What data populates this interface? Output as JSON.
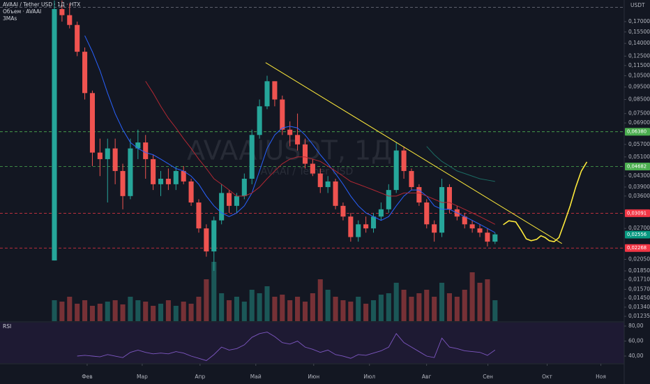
{
  "header": {
    "symbol_line": "AVAAI / Tether USD · 1Д · HTX",
    "volume_line": "Объем · AVAAI",
    "ma_line": "3MAs",
    "currency": "USDT"
  },
  "watermark": {
    "symbol": "AVAAIUSDT, 1Д",
    "name": "AVAAI / Tether USD"
  },
  "chart_data": [
    {
      "type": "candlestick",
      "log_scale": true,
      "grid": false,
      "up_color": "#26a69a",
      "down_color": "#ef5350",
      "x": [
        0,
        1,
        2,
        3,
        4,
        5,
        6,
        7,
        8,
        9,
        10,
        11,
        12,
        13,
        14,
        15,
        16,
        17,
        18,
        19,
        20,
        21,
        22,
        23,
        24,
        25,
        26,
        27,
        28,
        29,
        30,
        31,
        32,
        33,
        34,
        35,
        36,
        37,
        38,
        39,
        40,
        41,
        42,
        43,
        44,
        45,
        46,
        47,
        48,
        49,
        50,
        51,
        52,
        53,
        54,
        55,
        56,
        57,
        58
      ],
      "open": [
        0.0203,
        0.19,
        0.18,
        0.165,
        0.13,
        0.09,
        0.053,
        0.05,
        0.055,
        0.045,
        0.036,
        0.055,
        0.058,
        0.05,
        0.04,
        0.042,
        0.04,
        0.045,
        0.041,
        0.034,
        0.027,
        0.022,
        0.029,
        0.037,
        0.033,
        0.036,
        0.042,
        0.062,
        0.08,
        0.1,
        0.085,
        0.065,
        0.062,
        0.057,
        0.048,
        0.044,
        0.039,
        0.041,
        0.033,
        0.03,
        0.025,
        0.028,
        0.027,
        0.03,
        0.032,
        0.038,
        0.054,
        0.045,
        0.039,
        0.034,
        0.028,
        0.026,
        0.039,
        0.032,
        0.03,
        0.028,
        0.027,
        0.026,
        0.024
      ],
      "high": [
        0.205,
        0.205,
        0.2,
        0.17,
        0.135,
        0.092,
        0.06,
        0.06,
        0.06,
        0.048,
        0.06,
        0.065,
        0.062,
        0.052,
        0.045,
        0.046,
        0.047,
        0.047,
        0.042,
        0.035,
        0.028,
        0.03,
        0.04,
        0.038,
        0.037,
        0.044,
        0.065,
        0.085,
        0.105,
        0.1,
        0.088,
        0.07,
        0.075,
        0.06,
        0.05,
        0.046,
        0.043,
        0.042,
        0.034,
        0.031,
        0.029,
        0.03,
        0.031,
        0.034,
        0.04,
        0.058,
        0.056,
        0.046,
        0.04,
        0.035,
        0.029,
        0.042,
        0.04,
        0.033,
        0.031,
        0.029,
        0.028,
        0.027,
        0.026
      ],
      "low": [
        0.0203,
        0.17,
        0.16,
        0.125,
        0.085,
        0.047,
        0.043,
        0.034,
        0.04,
        0.032,
        0.035,
        0.05,
        0.042,
        0.038,
        0.036,
        0.038,
        0.038,
        0.04,
        0.033,
        0.026,
        0.021,
        0.0185,
        0.028,
        0.031,
        0.031,
        0.035,
        0.04,
        0.06,
        0.078,
        0.08,
        0.062,
        0.056,
        0.054,
        0.046,
        0.043,
        0.037,
        0.037,
        0.032,
        0.029,
        0.024,
        0.024,
        0.026,
        0.026,
        0.029,
        0.031,
        0.037,
        0.042,
        0.038,
        0.033,
        0.027,
        0.024,
        0.025,
        0.031,
        0.029,
        0.027,
        0.026,
        0.025,
        0.023,
        0.0235
      ],
      "close": [
        0.19,
        0.18,
        0.165,
        0.13,
        0.09,
        0.053,
        0.05,
        0.055,
        0.045,
        0.036,
        0.055,
        0.058,
        0.05,
        0.04,
        0.042,
        0.04,
        0.045,
        0.041,
        0.034,
        0.027,
        0.022,
        0.029,
        0.037,
        0.033,
        0.036,
        0.042,
        0.062,
        0.08,
        0.1,
        0.085,
        0.065,
        0.062,
        0.057,
        0.048,
        0.044,
        0.039,
        0.041,
        0.033,
        0.03,
        0.025,
        0.028,
        0.027,
        0.03,
        0.032,
        0.038,
        0.054,
        0.045,
        0.039,
        0.034,
        0.028,
        0.026,
        0.039,
        0.032,
        0.03,
        0.028,
        0.027,
        0.026,
        0.024,
        0.0256
      ],
      "volume": {
        "ylim": [
          0,
          100
        ],
        "values": [
          30,
          28,
          35,
          25,
          30,
          22,
          25,
          28,
          30,
          24,
          35,
          30,
          28,
          22,
          25,
          30,
          22,
          28,
          25,
          35,
          60,
          85,
          40,
          30,
          35,
          28,
          45,
          40,
          50,
          35,
          38,
          30,
          35,
          28,
          40,
          60,
          45,
          35,
          30,
          28,
          35,
          25,
          30,
          38,
          40,
          55,
          45,
          35,
          40,
          45,
          35,
          55,
          40,
          35,
          45,
          70,
          55,
          60,
          30
        ]
      },
      "moving_averages": [
        {
          "color": "#2962ff",
          "values": [
            null,
            null,
            null,
            null,
            0.15,
            0.13,
            0.11,
            0.09,
            0.075,
            0.065,
            0.058,
            0.055,
            0.053,
            0.052,
            0.05,
            0.048,
            0.046,
            0.045,
            0.043,
            0.04,
            0.036,
            0.033,
            0.031,
            0.03,
            0.031,
            0.033,
            0.037,
            0.045,
            0.055,
            0.062,
            0.066,
            0.067,
            0.066,
            0.062,
            0.057,
            0.052,
            0.048,
            0.044,
            0.04,
            0.036,
            0.033,
            0.031,
            0.03,
            0.029,
            0.03,
            0.033,
            0.036,
            0.038,
            0.038,
            0.036,
            0.033,
            0.032,
            0.032,
            0.031,
            0.03,
            0.029,
            0.028,
            0.027,
            0.026
          ]
        },
        {
          "color": "#b22833",
          "values": [
            null,
            null,
            null,
            null,
            null,
            null,
            null,
            null,
            null,
            null,
            null,
            null,
            0.1,
            0.09,
            0.08,
            0.072,
            0.066,
            0.06,
            0.055,
            0.05,
            0.046,
            0.042,
            0.04,
            0.038,
            0.036,
            0.036,
            0.037,
            0.039,
            0.042,
            0.045,
            0.048,
            0.05,
            0.051,
            0.051,
            0.05,
            0.049,
            0.047,
            0.045,
            0.043,
            0.041,
            0.04,
            0.039,
            0.038,
            0.037,
            0.036,
            0.036,
            0.037,
            0.037,
            0.037,
            0.036,
            0.035,
            0.034,
            0.034,
            0.033,
            0.032,
            0.031,
            0.03,
            0.029,
            0.028
          ]
        },
        {
          "color": "#1b6b63",
          "values": [
            null,
            null,
            null,
            null,
            null,
            null,
            null,
            null,
            null,
            null,
            null,
            null,
            null,
            null,
            null,
            null,
            null,
            null,
            null,
            null,
            null,
            null,
            null,
            null,
            null,
            null,
            null,
            null,
            null,
            null,
            null,
            null,
            null,
            null,
            null,
            null,
            null,
            null,
            null,
            null,
            null,
            null,
            null,
            null,
            null,
            null,
            null,
            null,
            null,
            0.056,
            0.052,
            0.049,
            0.047,
            0.045,
            0.044,
            0.043,
            0.042,
            0.0415,
            0.041
          ]
        }
      ],
      "levels": [
        {
          "value": 0.193,
          "label": null,
          "color": "#787b86"
        },
        {
          "value": 0.0638,
          "label": "0,06380",
          "color": "#4caf50"
        },
        {
          "value": 0.04682,
          "label": "0,04682",
          "color": "#4caf50"
        },
        {
          "value": 0.03091,
          "label": "0,03091",
          "color": "#f23645"
        },
        {
          "value": 0.02268,
          "label": "0,02268",
          "color": "#f23645"
        }
      ],
      "last_price": {
        "value": 0.02556,
        "label": "0,02556",
        "color": "#089981"
      },
      "trendline": {
        "color": "#ffeb3b",
        "x": [
          27.8,
          66.8
        ],
        "y": [
          0.118,
          0.0236
        ]
      },
      "drawing": {
        "color": "#ffeb3b",
        "x": [
          59.08,
          59.82,
          60.73,
          61.47,
          62.11,
          62.75,
          63.49,
          64.04,
          64.59,
          65.14,
          65.78,
          66.42,
          67.16,
          67.89,
          68.62,
          69.36,
          70.09
        ],
        "y": [
          0.0279,
          0.0289,
          0.0286,
          0.0265,
          0.0246,
          0.0242,
          0.0245,
          0.0253,
          0.0249,
          0.0242,
          0.024,
          0.0249,
          0.0286,
          0.033,
          0.039,
          0.045,
          0.0488
        ]
      },
      "xlim": [
        -7.16,
        75.0
      ],
      "xticks": [
        {
          "value": 4.31,
          "label": "Фев"
        },
        {
          "value": 11.56,
          "label": "Мар"
        },
        {
          "value": 19.17,
          "label": "Апр"
        },
        {
          "value": 26.51,
          "label": "Май"
        },
        {
          "value": 34.13,
          "label": "Июн"
        },
        {
          "value": 41.47,
          "label": "Июл"
        },
        {
          "value": 48.99,
          "label": "Авг"
        },
        {
          "value": 57.06,
          "label": "Сен"
        },
        {
          "value": 64.86,
          "label": "Окт"
        },
        {
          "value": 71.93,
          "label": "Ноя"
        }
      ],
      "ylim": [
        0.01183,
        0.206
      ],
      "yticks": [
        {
          "value": 0.17,
          "label": "0,17000"
        },
        {
          "value": 0.155,
          "label": "0,15500"
        },
        {
          "value": 0.14,
          "label": "0,14000"
        },
        {
          "value": 0.125,
          "label": "0,12500"
        },
        {
          "value": 0.115,
          "label": "0,11500"
        },
        {
          "value": 0.105,
          "label": "0,10500"
        },
        {
          "value": 0.095,
          "label": "0,09500"
        },
        {
          "value": 0.085,
          "label": "0,08500"
        },
        {
          "value": 0.075,
          "label": "0,07500"
        },
        {
          "value": 0.069,
          "label": "0,06900"
        },
        {
          "value": 0.057,
          "label": "0,05700"
        },
        {
          "value": 0.051,
          "label": "0,05100"
        },
        {
          "value": 0.043,
          "label": "0,04300"
        },
        {
          "value": 0.039,
          "label": "0,03900"
        },
        {
          "value": 0.036,
          "label": "0,03600"
        },
        {
          "value": 0.027,
          "label": "0,02700"
        },
        {
          "value": 0.0205,
          "label": "0,02050"
        },
        {
          "value": 0.0185,
          "label": "0,01850"
        },
        {
          "value": 0.0171,
          "label": "0,01710"
        },
        {
          "value": 0.0157,
          "label": "0,01570"
        },
        {
          "value": 0.0145,
          "label": "0,01450"
        },
        {
          "value": 0.0134,
          "label": "0,01340"
        },
        {
          "value": 0.01235,
          "label": "0,01235"
        }
      ]
    },
    {
      "type": "line",
      "title": "RSI",
      "color": "#7e57c2",
      "values": [
        null,
        null,
        null,
        40,
        41,
        40,
        39,
        42,
        40,
        38,
        45,
        48,
        45,
        43,
        44,
        43,
        46,
        44,
        40,
        37,
        34,
        42,
        52,
        48,
        50,
        55,
        65,
        70,
        72,
        66,
        58,
        56,
        60,
        52,
        49,
        45,
        48,
        42,
        40,
        37,
        42,
        41,
        44,
        47,
        52,
        70,
        58,
        52,
        46,
        40,
        38,
        64,
        52,
        50,
        47,
        46,
        45,
        41,
        48
      ],
      "ylim": [
        30.7,
        84.7
      ],
      "yticks": [
        {
          "value": 80,
          "label": "80,00"
        },
        {
          "value": 60,
          "label": "60,00"
        },
        {
          "value": 40,
          "label": "40,00"
        }
      ]
    }
  ]
}
